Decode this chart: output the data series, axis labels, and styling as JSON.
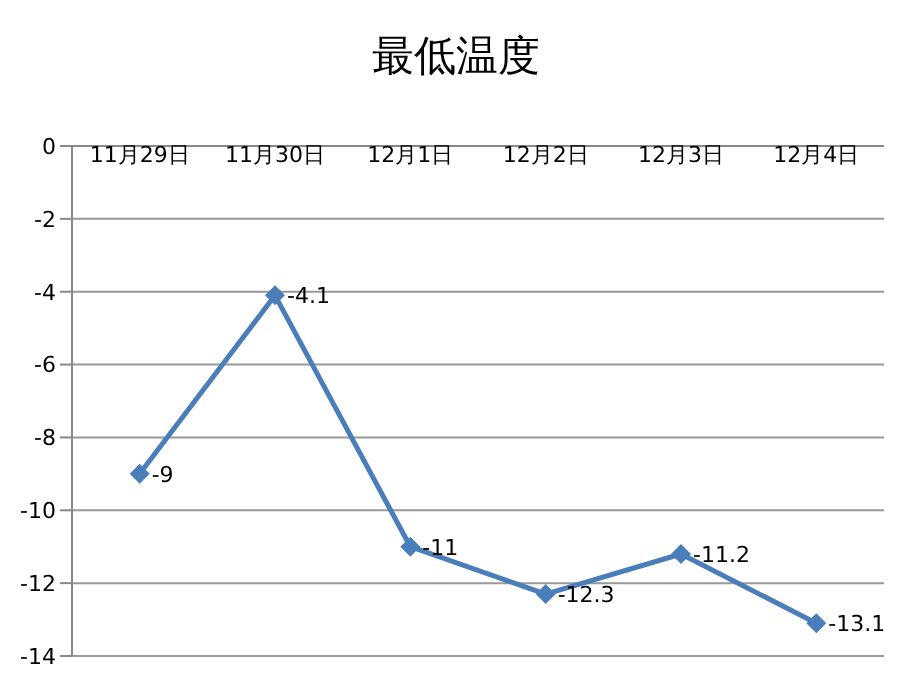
{
  "chart_data": {
    "type": "line",
    "title": "最低温度",
    "categories": [
      "11月29日",
      "11月30日",
      "12月1日",
      "12月2日",
      "12月3日",
      "12月4日"
    ],
    "series": [
      {
        "color": "#4a7ebb",
        "values": [
          -9,
          -4.1,
          -11,
          -12.3,
          -11.2,
          -13.1
        ]
      }
    ],
    "ylim": [
      -14,
      0
    ],
    "yticks": [
      -14,
      -12,
      -10,
      -8,
      -6,
      -4,
      -2,
      0
    ],
    "grid": "y",
    "marker": "diamond",
    "line_style": "solid",
    "data_labels": true
  }
}
